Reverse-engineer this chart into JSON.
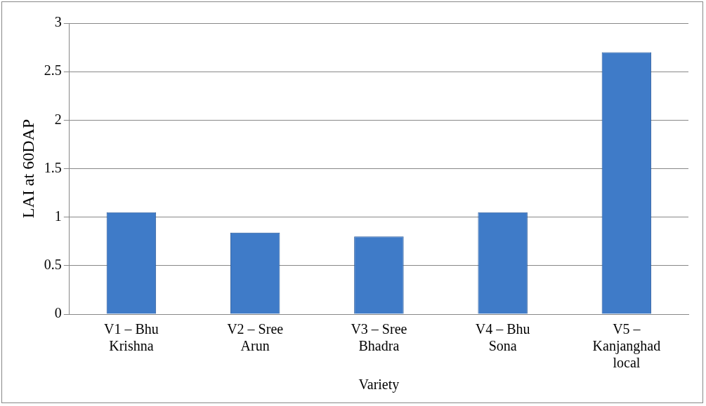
{
  "chart_data": {
    "type": "bar",
    "xlabel": "Variety",
    "ylabel": "LAI at 60DAP",
    "categories": [
      "V1 – Bhu Krishna",
      "V2 – Sree Arun",
      "V3 – Sree Bhadra",
      "V4 – Bhu Sona",
      "V5 – Kanjanghad local"
    ],
    "values": [
      1.05,
      0.84,
      0.8,
      1.05,
      2.7
    ],
    "color": "#3f7bc8",
    "ylim": [
      0,
      3
    ],
    "yticks": [
      0,
      0.5,
      1,
      1.5,
      2,
      2.5,
      3
    ],
    "grid": "y",
    "legend": false
  }
}
